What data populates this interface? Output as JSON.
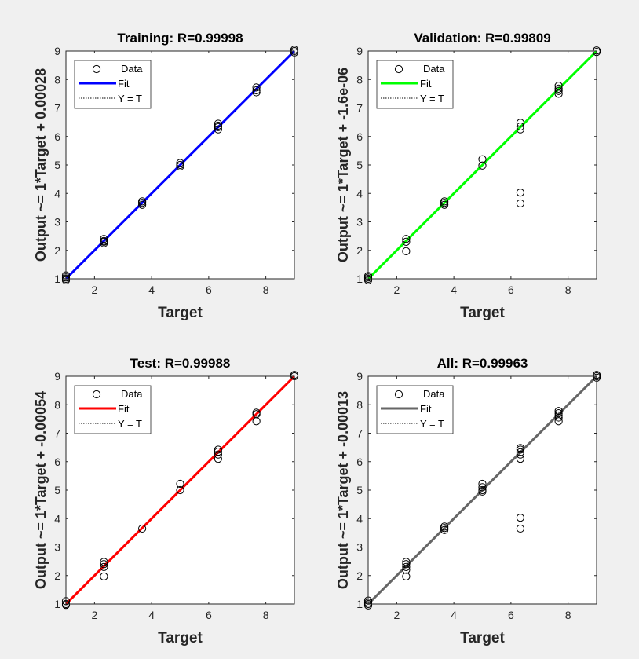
{
  "chart_data": [
    {
      "type": "scatter",
      "title": "Training: R=0.99998",
      "xlabel": "Target",
      "ylabel": "Output ~= 1*Target + 0.00028",
      "xlim": [
        1,
        9
      ],
      "ylim": [
        1,
        9
      ],
      "xticks": [
        2,
        4,
        6,
        8
      ],
      "yticks": [
        1,
        2,
        3,
        4,
        5,
        6,
        7,
        8,
        9
      ],
      "legend": {
        "placement": "top-left",
        "entries": [
          "Data",
          "Fit",
          "Y = T"
        ]
      },
      "fit_color": "#0000ff",
      "fit": {
        "slope": 1,
        "intercept": 0.00028
      },
      "points": [
        [
          1,
          1.0
        ],
        [
          1,
          0.95
        ],
        [
          1,
          1.12
        ],
        [
          1,
          1.05
        ],
        [
          2.33,
          2.25
        ],
        [
          2.33,
          2.33
        ],
        [
          2.33,
          2.4
        ],
        [
          2.33,
          2.3
        ],
        [
          3.67,
          3.6
        ],
        [
          3.67,
          3.67
        ],
        [
          3.67,
          3.72
        ],
        [
          5,
          4.95
        ],
        [
          5,
          5.0
        ],
        [
          5,
          5.07
        ],
        [
          6.33,
          6.25
        ],
        [
          6.33,
          6.33
        ],
        [
          6.33,
          6.45
        ],
        [
          6.33,
          6.38
        ],
        [
          7.67,
          7.55
        ],
        [
          7.67,
          7.62
        ],
        [
          7.67,
          7.72
        ],
        [
          9,
          8.95
        ],
        [
          9,
          9.0
        ],
        [
          9,
          9.05
        ]
      ]
    },
    {
      "type": "scatter",
      "title": "Validation: R=0.99809",
      "xlabel": "Target",
      "ylabel": "Output ~= 1*Target + -1.6e-06",
      "xlim": [
        1,
        9
      ],
      "ylim": [
        1,
        9
      ],
      "xticks": [
        2,
        4,
        6,
        8
      ],
      "yticks": [
        1,
        2,
        3,
        4,
        5,
        6,
        7,
        8,
        9
      ],
      "legend": {
        "placement": "top-left",
        "entries": [
          "Data",
          "Fit",
          "Y = T"
        ]
      },
      "fit_color": "#00ff00",
      "fit": {
        "slope": 1,
        "intercept": -1.6e-06
      },
      "points": [
        [
          1,
          1.0
        ],
        [
          1,
          0.95
        ],
        [
          1,
          1.1
        ],
        [
          1,
          1.05
        ],
        [
          2.33,
          2.3
        ],
        [
          2.33,
          2.4
        ],
        [
          2.33,
          1.97
        ],
        [
          3.67,
          3.6
        ],
        [
          3.67,
          3.67
        ],
        [
          3.67,
          3.72
        ],
        [
          5,
          4.98
        ],
        [
          5,
          5.2
        ],
        [
          6.33,
          6.25
        ],
        [
          6.33,
          6.35
        ],
        [
          6.33,
          6.48
        ],
        [
          6.33,
          4.03
        ],
        [
          6.33,
          3.65
        ],
        [
          7.67,
          7.5
        ],
        [
          7.67,
          7.6
        ],
        [
          7.67,
          7.68
        ],
        [
          7.67,
          7.78
        ],
        [
          9,
          8.97
        ],
        [
          9,
          9.02
        ]
      ]
    },
    {
      "type": "scatter",
      "title": "Test: R=0.99988",
      "xlabel": "Target",
      "ylabel": "Output ~= 1*Target + -0.00054",
      "xlim": [
        1,
        9
      ],
      "ylim": [
        1,
        9
      ],
      "xticks": [
        2,
        4,
        6,
        8
      ],
      "yticks": [
        1,
        2,
        3,
        4,
        5,
        6,
        7,
        8,
        9
      ],
      "legend": {
        "placement": "top-left",
        "entries": [
          "Data",
          "Fit",
          "Y = T"
        ]
      },
      "fit_color": "#ff0000",
      "fit": {
        "slope": 1,
        "intercept": -0.00054
      },
      "points": [
        [
          1,
          1.0
        ],
        [
          1,
          1.1
        ],
        [
          1,
          0.97
        ],
        [
          2.33,
          2.3
        ],
        [
          2.33,
          2.4
        ],
        [
          2.33,
          2.48
        ],
        [
          2.33,
          1.97
        ],
        [
          3.67,
          3.65
        ],
        [
          5,
          5.0
        ],
        [
          5,
          5.22
        ],
        [
          6.33,
          6.1
        ],
        [
          6.33,
          6.25
        ],
        [
          6.33,
          6.35
        ],
        [
          6.33,
          6.42
        ],
        [
          7.67,
          7.42
        ],
        [
          7.67,
          7.67
        ],
        [
          7.67,
          7.72
        ],
        [
          9,
          9.0
        ],
        [
          9,
          9.05
        ]
      ]
    },
    {
      "type": "scatter",
      "title": "All: R=0.99963",
      "xlabel": "Target",
      "ylabel": "Output ~= 1*Target + -0.00013",
      "xlim": [
        1,
        9
      ],
      "ylim": [
        1,
        9
      ],
      "xticks": [
        2,
        4,
        6,
        8
      ],
      "yticks": [
        1,
        2,
        3,
        4,
        5,
        6,
        7,
        8,
        9
      ],
      "legend": {
        "placement": "top-left",
        "entries": [
          "Data",
          "Fit",
          "Y = T"
        ]
      },
      "fit_color": "#666666",
      "fit": {
        "slope": 1,
        "intercept": -0.00013
      },
      "points": [
        [
          1,
          1.0
        ],
        [
          1,
          0.95
        ],
        [
          1,
          1.12
        ],
        [
          1,
          1.05
        ],
        [
          2.33,
          2.2
        ],
        [
          2.33,
          2.3
        ],
        [
          2.33,
          2.4
        ],
        [
          2.33,
          2.48
        ],
        [
          2.33,
          1.97
        ],
        [
          3.67,
          3.6
        ],
        [
          3.67,
          3.67
        ],
        [
          3.67,
          3.72
        ],
        [
          5,
          4.95
        ],
        [
          5,
          5.0
        ],
        [
          5,
          5.1
        ],
        [
          5,
          5.22
        ],
        [
          6.33,
          6.1
        ],
        [
          6.33,
          6.25
        ],
        [
          6.33,
          6.33
        ],
        [
          6.33,
          6.42
        ],
        [
          6.33,
          6.48
        ],
        [
          6.33,
          4.03
        ],
        [
          6.33,
          3.65
        ],
        [
          7.67,
          7.42
        ],
        [
          7.67,
          7.55
        ],
        [
          7.67,
          7.62
        ],
        [
          7.67,
          7.7
        ],
        [
          7.67,
          7.78
        ],
        [
          9,
          8.95
        ],
        [
          9,
          9.0
        ],
        [
          9,
          9.05
        ]
      ]
    }
  ]
}
